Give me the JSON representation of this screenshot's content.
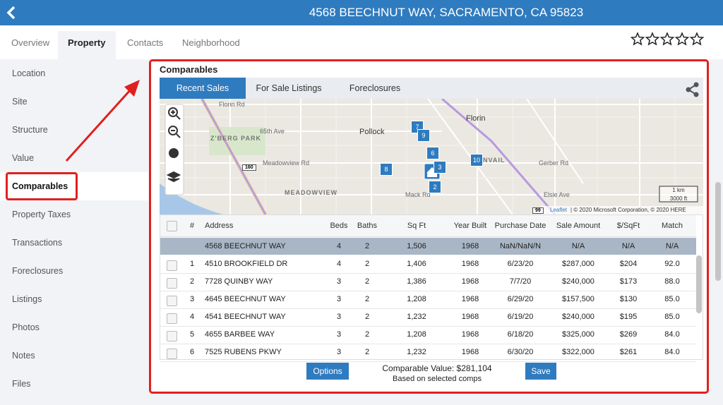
{
  "header": {
    "title": "4568 BEECHNUT WAY, SACRAMENTO, CA 95823"
  },
  "tabs": [
    "Overview",
    "Property",
    "Contacts",
    "Neighborhood"
  ],
  "sidebar": [
    "Location",
    "Site",
    "Structure",
    "Value",
    "Comparables",
    "Property Taxes",
    "Transactions",
    "Foreclosures",
    "Listings",
    "Photos",
    "Notes",
    "Files"
  ],
  "panel": {
    "title": "Comparables",
    "subtabs": [
      "Recent Sales",
      "For Sale Listings",
      "Foreclosures"
    ]
  },
  "map": {
    "labels": [
      "Florin Rd",
      "Pollock",
      "Florin",
      "Z'BERG PARK",
      "65th Ave",
      "Meadowview Rd",
      "MEADOWVIEW",
      "NVAIL",
      "Gerber Rd",
      "Mack Rd",
      "Elsie Ave"
    ],
    "markers": [
      "7",
      "9",
      "6",
      "8",
      "10",
      "3",
      "2"
    ],
    "highways": [
      "160",
      "99"
    ],
    "scale": [
      "1 km",
      "3000 ft"
    ],
    "attribution": {
      "link": "Leaflet",
      "text": "| © 2020 Microsoft Corporation, © 2020 HERE"
    }
  },
  "table": {
    "columns": [
      "#",
      "Address",
      "Beds",
      "Baths",
      "Sq Ft",
      "Year Built",
      "Purchase Date",
      "Sale Amount",
      "$/SqFt",
      "Match"
    ],
    "subject": [
      "4568 BEECHNUT WAY",
      "4",
      "2",
      "1,506",
      "1968",
      "NaN/NaN/N",
      "N/A",
      "N/A",
      "N/A"
    ],
    "rows": [
      [
        "1",
        "4510 BROOKFIELD DR",
        "4",
        "2",
        "1,406",
        "1968",
        "6/23/20",
        "$287,000",
        "$204",
        "92.0"
      ],
      [
        "2",
        "7728 QUINBY WAY",
        "3",
        "2",
        "1,386",
        "1968",
        "7/7/20",
        "$240,000",
        "$173",
        "88.0"
      ],
      [
        "3",
        "4645 BEECHNUT WAY",
        "3",
        "2",
        "1,208",
        "1968",
        "6/29/20",
        "$157,500",
        "$130",
        "85.0"
      ],
      [
        "4",
        "4541 BEECHNUT WAY",
        "3",
        "2",
        "1,232",
        "1968",
        "6/19/20",
        "$240,000",
        "$195",
        "85.0"
      ],
      [
        "5",
        "4655 BARBEE WAY",
        "3",
        "2",
        "1,208",
        "1968",
        "6/18/20",
        "$325,000",
        "$269",
        "84.0"
      ],
      [
        "6",
        "7525 RUBENS PKWY",
        "3",
        "2",
        "1,232",
        "1968",
        "6/30/20",
        "$322,000",
        "$261",
        "84.0"
      ]
    ]
  },
  "footer": {
    "options": "Options",
    "value": "Comparable Value: $281,104",
    "note": "Based on selected comps",
    "save": "Save"
  }
}
